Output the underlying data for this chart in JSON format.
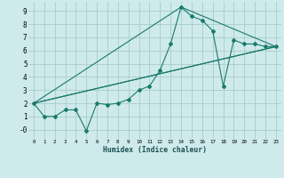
{
  "xlabel": "Humidex (Indice chaleur)",
  "bg_color": "#ceeaea",
  "grid_color": "#a8cccc",
  "line_color": "#1a7a6a",
  "xlim": [
    -0.5,
    23.5
  ],
  "ylim": [
    -0.7,
    9.7
  ],
  "xticks": [
    0,
    1,
    2,
    3,
    4,
    5,
    6,
    7,
    8,
    9,
    10,
    11,
    12,
    13,
    14,
    15,
    16,
    17,
    18,
    19,
    20,
    21,
    22,
    23
  ],
  "yticks": [
    0,
    1,
    2,
    3,
    4,
    5,
    6,
    7,
    8,
    9
  ],
  "ytick_labels": [
    "-0",
    "1",
    "2",
    "3",
    "4",
    "5",
    "6",
    "7",
    "8",
    "9"
  ],
  "series_main": {
    "x": [
      0,
      1,
      2,
      3,
      4,
      5,
      6,
      7,
      8,
      9,
      10,
      11,
      12,
      13,
      14,
      15,
      16,
      17,
      18,
      19,
      20,
      21,
      22,
      23
    ],
    "y": [
      2.0,
      1.0,
      1.0,
      1.5,
      1.5,
      -0.1,
      2.0,
      1.9,
      2.0,
      2.3,
      3.0,
      3.3,
      4.5,
      6.5,
      9.3,
      8.6,
      8.3,
      7.5,
      3.3,
      6.8,
      6.5,
      6.5,
      6.3,
      6.3
    ]
  },
  "series_straight": [
    {
      "x": [
        0,
        23
      ],
      "y": [
        2.0,
        6.3
      ]
    },
    {
      "x": [
        0,
        14,
        23
      ],
      "y": [
        2.0,
        9.3,
        6.3
      ]
    },
    {
      "x": [
        0,
        23
      ],
      "y": [
        2.0,
        6.3
      ]
    }
  ]
}
